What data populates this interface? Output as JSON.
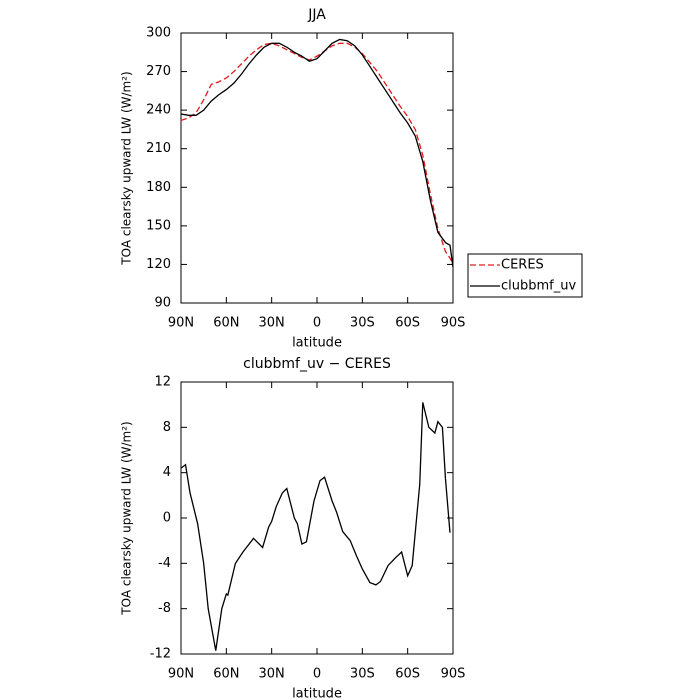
{
  "chart_data": [
    {
      "type": "line",
      "title": "JJA",
      "x_label": "latitude",
      "y_label": "TOA clearsky upward LW (W/m²)",
      "x": [
        90,
        85,
        80,
        75,
        70,
        65,
        60,
        55,
        50,
        45,
        40,
        35,
        30,
        25,
        20,
        15,
        10,
        5,
        0,
        -5,
        -10,
        -15,
        -20,
        -25,
        -30,
        -35,
        -40,
        -45,
        -50,
        -55,
        -60,
        -65,
        -70,
        -75,
        -80,
        -85,
        -88,
        -90
      ],
      "series": [
        {
          "name": "CERES",
          "color": "#e41a1c",
          "linestyle": "dashed",
          "values": [
            232,
            234,
            238,
            248,
            260,
            262,
            265,
            270,
            276,
            282,
            287,
            291,
            292,
            290,
            287,
            284,
            281,
            279,
            282,
            286,
            290,
            292,
            292,
            289,
            284,
            277,
            270,
            261,
            252,
            243,
            235,
            225,
            205,
            175,
            148,
            130,
            125,
            120
          ]
        },
        {
          "name": "clubbmf_uv",
          "color": "#000000",
          "linestyle": "solid",
          "values": [
            237,
            236,
            236,
            240,
            247,
            252,
            256,
            261,
            268,
            276,
            283,
            289,
            292,
            292,
            289,
            285,
            282,
            278,
            280,
            286,
            292,
            295,
            294,
            290,
            283,
            274,
            265,
            256,
            247,
            238,
            230,
            220,
            200,
            170,
            145,
            137,
            135,
            118
          ]
        }
      ],
      "xlim": [
        90,
        -90
      ],
      "xticks": [
        {
          "value": 90,
          "label": "90N"
        },
        {
          "value": 60,
          "label": "60N"
        },
        {
          "value": 30,
          "label": "30N"
        },
        0,
        {
          "value": -30,
          "label": "30S"
        },
        {
          "value": -60,
          "label": "60S"
        },
        {
          "value": -90,
          "label": "90S"
        }
      ],
      "ylim": [
        90,
        300
      ],
      "yticks": [
        90,
        120,
        150,
        180,
        210,
        240,
        270,
        300
      ],
      "legend": "right"
    },
    {
      "type": "line",
      "title": "clubbmf_uv − CERES",
      "x_label": "latitude",
      "y_label": "TOA clearsky upward LW (W/m²)",
      "x": [
        90,
        87,
        84,
        79,
        75,
        72,
        67,
        63,
        60,
        59,
        54,
        49,
        42,
        36,
        32,
        30,
        27,
        23,
        20,
        15,
        13,
        10,
        7,
        2,
        -2,
        -5,
        -10,
        -13,
        -17,
        -22,
        -26,
        -30,
        -35,
        -39,
        -42,
        -47,
        -52,
        -56,
        -60,
        -63,
        -68,
        -70,
        -74,
        -78,
        -80,
        -83,
        -85,
        -88
      ],
      "series": [
        {
          "name": "clubbmf_uv − CERES",
          "color": "#000000",
          "linestyle": "solid",
          "values": [
            4.4,
            4.7,
            2.2,
            -0.5,
            -4,
            -8,
            -11.7,
            -8,
            -6.7,
            -6.8,
            -4,
            -3,
            -1.8,
            -2.6,
            -0.8,
            -0.3,
            1,
            2.2,
            2.6,
            0,
            -0.5,
            -2.3,
            -2.1,
            1.5,
            3.3,
            3.6,
            1.5,
            0.5,
            -1.2,
            -2,
            -3.3,
            -4.5,
            -5.7,
            -5.9,
            -5.6,
            -4.2,
            -3.5,
            -3,
            -5.1,
            -4.2,
            3,
            10.2,
            8,
            7.5,
            8.5,
            8,
            3.5,
            -1.3
          ]
        }
      ],
      "xlim": [
        90,
        -90
      ],
      "xticks": [
        {
          "value": 90,
          "label": "90N"
        },
        {
          "value": 60,
          "label": "60N"
        },
        {
          "value": 30,
          "label": "30N"
        },
        0,
        {
          "value": -30,
          "label": "30S"
        },
        {
          "value": -60,
          "label": "60S"
        },
        {
          "value": -90,
          "label": "90S"
        }
      ],
      "ylim": [
        -12,
        12
      ],
      "yticks": [
        -12,
        -8,
        -4,
        0,
        4,
        8,
        12
      ]
    }
  ]
}
